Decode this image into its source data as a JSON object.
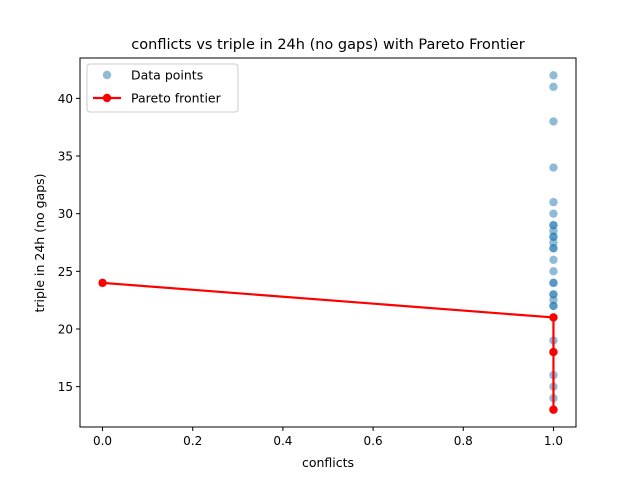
{
  "chart_data": {
    "type": "scatter",
    "title": "conflicts vs triple in 24h (no gaps) with Pareto Frontier",
    "xlabel": "conflicts",
    "ylabel": "triple in 24h (no gaps)",
    "xlim": [
      -0.05,
      1.05
    ],
    "ylim": [
      11.5,
      43.5
    ],
    "xticks": [
      0.0,
      0.2,
      0.4,
      0.6,
      0.8,
      1.0
    ],
    "xtick_labels": [
      "0.0",
      "0.2",
      "0.4",
      "0.6",
      "0.8",
      "1.0"
    ],
    "yticks": [
      15,
      20,
      25,
      30,
      35,
      40
    ],
    "ytick_labels": [
      "15",
      "20",
      "25",
      "30",
      "35",
      "40"
    ],
    "grid": false,
    "legend_position": "top-left",
    "series": [
      {
        "name": "Data points",
        "kind": "scatter",
        "color": "#1f77b4",
        "x": [
          1,
          1,
          1,
          1,
          1,
          1,
          1,
          1,
          1,
          1,
          1,
          1,
          1,
          1,
          1,
          1,
          1,
          1,
          1,
          1,
          1,
          1,
          1,
          1,
          1,
          1,
          1,
          1,
          1,
          1
        ],
        "y": [
          42,
          41,
          38,
          34,
          31,
          30,
          29,
          28.5,
          28,
          27.5,
          27,
          26,
          25,
          24,
          23,
          22.5,
          22,
          21,
          19,
          18,
          16,
          15,
          14,
          13,
          29,
          28,
          27,
          23,
          22,
          24
        ]
      },
      {
        "name": "Pareto frontier",
        "kind": "line",
        "color": "#ff0000",
        "x": [
          0,
          1,
          1,
          1
        ],
        "y": [
          24,
          21,
          18,
          13
        ]
      }
    ]
  }
}
